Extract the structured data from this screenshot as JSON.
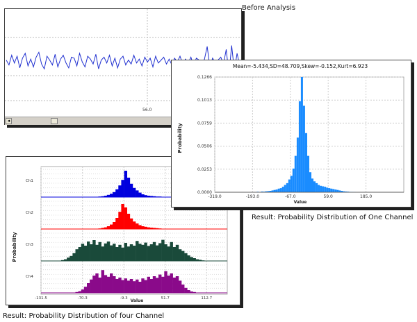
{
  "captions": {
    "before": "Before Analysis",
    "one_channel": "Result: Probability  Distribution  of One Channel",
    "four_channel": "Result: Probability  Distribution  of four  Channel"
  },
  "waveform_window": {
    "x_tick": "56.0",
    "scroll_left_glyph": "◂"
  },
  "one_channel_window": {
    "stats": "Mean=-5.434,SD=48.709,Skew=-0.152,Kurt=6.923",
    "ylabel": "Probability",
    "xlabel": "Value",
    "yticks": [
      "0.1266",
      "0.1013",
      "0.0759",
      "0.0506",
      "0.0253",
      "0.0000"
    ],
    "xticks": [
      "-319.0",
      "-193.0",
      "-67.0",
      "59.0",
      "185.0"
    ]
  },
  "four_channel_window": {
    "ylabel": "Probability",
    "xlabel": "Value",
    "channels": [
      "Ch1",
      "Ch2",
      "Ch3",
      "Ch4"
    ],
    "xticks": [
      "-131.5",
      "-70.3",
      "-9.3",
      "51.7",
      "112.7"
    ]
  },
  "colors": {
    "ch1": "#0000dd",
    "ch2": "#ff0000",
    "ch3": "#1a4a3a",
    "ch4": "#8a0a8a",
    "one": "#1a8cff",
    "wave": "#2030d0"
  },
  "chart_data": [
    {
      "type": "line",
      "title": "",
      "xlabel": "",
      "ylabel": "",
      "x_tick_labels": [
        "56.0"
      ],
      "series": [
        {
          "values": [
            0.1,
            -0.4,
            0.6,
            -0.2,
            0.5,
            -0.7,
            0.3,
            0.8,
            -0.5,
            0.2,
            -0.6,
            0.4,
            0.9,
            -0.3,
            -0.8,
            0.5,
            0.1,
            -0.4,
            0.7,
            -0.6,
            0.2,
            0.6,
            -0.2,
            -0.7,
            0.4,
            0.3,
            -0.5,
            0.8,
            -0.1,
            -0.6,
            0.5,
            0.2,
            -0.3,
            0.7,
            -0.8,
            0.1,
            0.4,
            -0.2,
            0.6,
            -0.5,
            0.3,
            -0.7,
            0.2,
            0.5,
            -0.4,
            0.1,
            -0.3,
            0.6,
            -0.2,
            0.2,
            -0.5,
            0.4,
            -0.1,
            0.3,
            -0.6,
            0.5,
            -0.2,
            0.1,
            0.4,
            -0.3,
            0.2,
            -0.4,
            0.3,
            -0.1,
            0.5,
            -0.3,
            0.2,
            -0.2,
            0.4,
            -0.5,
            0.3,
            0.1,
            -0.4,
            0.2,
            1.5,
            -0.6,
            0.3,
            -0.2,
            0.1,
            0.4,
            -0.3,
            1.2,
            -1.4,
            1.6,
            -1.0,
            0.8,
            -0.5
          ]
        }
      ]
    },
    {
      "type": "bar",
      "title": "Mean=-5.434,SD=48.709,Skew=-0.152,Kurt=6.923",
      "xlabel": "Value",
      "ylabel": "Probability",
      "xlim": [
        -319.0,
        311.0
      ],
      "ylim": [
        0,
        0.1266
      ],
      "x_tick_labels": [
        "-319.0",
        "-193.0",
        "-67.0",
        "59.0",
        "185.0"
      ],
      "y_tick_labels": [
        "0.1266",
        "0.1013",
        "0.0759",
        "0.0506",
        "0.0253",
        "0.0000"
      ],
      "bins": {
        "x_start": -319.0,
        "bin_width": 7.0
      },
      "values": [
        0,
        0,
        0,
        0,
        0,
        0,
        0,
        0,
        0,
        0,
        0,
        0,
        0,
        0,
        0,
        0,
        0,
        0,
        0,
        0,
        0.0005,
        0,
        0.0008,
        0.0006,
        0.001,
        0.0012,
        0.0015,
        0.002,
        0.0025,
        0.003,
        0.004,
        0.0045,
        0.006,
        0.008,
        0.01,
        0.014,
        0.018,
        0.026,
        0.04,
        0.06,
        0.1,
        0.128,
        0.095,
        0.065,
        0.04,
        0.022,
        0.015,
        0.012,
        0.01,
        0.008,
        0.007,
        0.0065,
        0.006,
        0.005,
        0.0045,
        0.004,
        0.0035,
        0.003,
        0.0025,
        0.002,
        0.0015,
        0.001,
        0.0008,
        0.0006,
        0.0004,
        0.0003,
        0.0002,
        0,
        0,
        0,
        0,
        0,
        0,
        0,
        0,
        0,
        0,
        0,
        0,
        0
      ]
    },
    {
      "type": "bar",
      "title": "",
      "xlabel": "Value",
      "ylabel": "Probability",
      "xlim": [
        -131.5,
        143.2
      ],
      "x_tick_labels": [
        "-131.5",
        "-70.3",
        "-9.3",
        "51.7",
        "112.7"
      ],
      "series": [
        {
          "name": "Ch1",
          "values": [
            0,
            0,
            0,
            0,
            0,
            0,
            0,
            0,
            0,
            0,
            0,
            0,
            0,
            0,
            0,
            0,
            0,
            0,
            0,
            0.01,
            0.02,
            0.03,
            0.05,
            0.08,
            0.12,
            0.18,
            0.28,
            0.42,
            0.62,
            0.95,
            0.7,
            0.48,
            0.33,
            0.24,
            0.16,
            0.1,
            0.07,
            0.05,
            0.04,
            0.03,
            0.02,
            0.02,
            0.01,
            0,
            0,
            0,
            0,
            0,
            0,
            0,
            0,
            0,
            0,
            0,
            0,
            0,
            0,
            0,
            0,
            0,
            0,
            0,
            0,
            0,
            0
          ]
        },
        {
          "name": "Ch2",
          "values": [
            0,
            0,
            0,
            0,
            0,
            0,
            0,
            0,
            0,
            0,
            0,
            0,
            0,
            0,
            0,
            0,
            0,
            0,
            0,
            0.01,
            0.02,
            0.04,
            0.06,
            0.1,
            0.16,
            0.25,
            0.4,
            0.62,
            0.9,
            0.78,
            0.55,
            0.38,
            0.27,
            0.2,
            0.14,
            0.1,
            0.08,
            0.06,
            0.05,
            0.04,
            0.03,
            0.02,
            0.01,
            0,
            0,
            0,
            0,
            0,
            0,
            0,
            0,
            0,
            0,
            0,
            0,
            0,
            0,
            0,
            0,
            0,
            0,
            0,
            0,
            0,
            0
          ]
        },
        {
          "name": "Ch3",
          "values": [
            0,
            0,
            0,
            0,
            0,
            0,
            0,
            0.03,
            0.06,
            0.12,
            0.18,
            0.28,
            0.42,
            0.5,
            0.62,
            0.55,
            0.7,
            0.6,
            0.75,
            0.58,
            0.68,
            0.52,
            0.63,
            0.7,
            0.56,
            0.62,
            0.5,
            0.58,
            0.48,
            0.65,
            0.52,
            0.6,
            0.55,
            0.72,
            0.62,
            0.58,
            0.66,
            0.54,
            0.6,
            0.68,
            0.56,
            0.64,
            0.76,
            0.6,
            0.52,
            0.68,
            0.5,
            0.58,
            0.42,
            0.36,
            0.28,
            0.2,
            0.14,
            0.1,
            0.06,
            0.04,
            0.02,
            0.01,
            0,
            0,
            0,
            0,
            0,
            0,
            0
          ]
        },
        {
          "name": "Ch4",
          "values": [
            0,
            0,
            0,
            0,
            0,
            0,
            0,
            0,
            0,
            0,
            0,
            0,
            0.03,
            0.06,
            0.12,
            0.22,
            0.35,
            0.48,
            0.62,
            0.7,
            0.55,
            0.82,
            0.64,
            0.58,
            0.7,
            0.6,
            0.5,
            0.55,
            0.46,
            0.52,
            0.44,
            0.5,
            0.42,
            0.48,
            0.4,
            0.52,
            0.46,
            0.58,
            0.5,
            0.6,
            0.54,
            0.66,
            0.58,
            0.78,
            0.62,
            0.7,
            0.55,
            0.6,
            0.44,
            0.3,
            0.18,
            0.1,
            0.05,
            0.03,
            0.01,
            0,
            0,
            0,
            0,
            0,
            0,
            0,
            0,
            0,
            0
          ]
        }
      ]
    }
  ]
}
